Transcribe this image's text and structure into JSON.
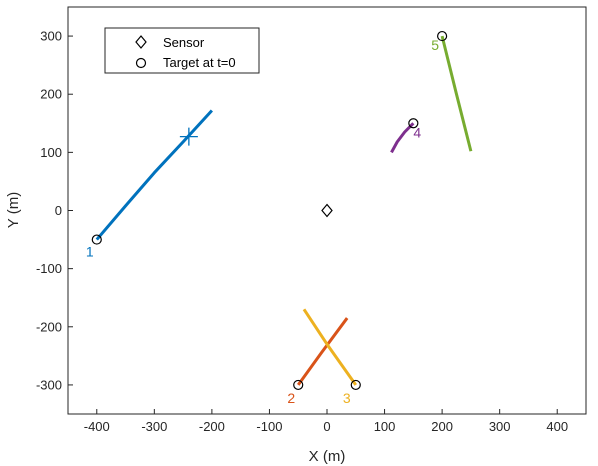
{
  "chart_data": {
    "type": "line",
    "xlabel": "X (m)",
    "ylabel": "Y (m)",
    "xlim": [
      -450,
      450
    ],
    "ylim": [
      -350,
      350
    ],
    "xticks": [
      -400,
      -300,
      -200,
      -100,
      0,
      100,
      200,
      300,
      400
    ],
    "yticks": [
      -300,
      -200,
      -100,
      0,
      100,
      200,
      300
    ],
    "grid": false,
    "legend": {
      "placement": "top-left",
      "entries": [
        {
          "marker": "diamond",
          "label": "Sensor"
        },
        {
          "marker": "circle",
          "label": "Target at t=0"
        }
      ]
    },
    "sensor": {
      "x": 0,
      "y": 0
    },
    "series": [
      {
        "label": "1",
        "color": "#0072BD",
        "start": [
          -400,
          -50
        ],
        "points": [
          [
            -400,
            -50
          ],
          [
            -350,
            8
          ],
          [
            -300,
            65
          ],
          [
            -250,
            118
          ],
          [
            -200,
            172
          ]
        ],
        "marker_plus": [
          -240,
          127
        ]
      },
      {
        "label": "2",
        "color": "#D95319",
        "start": [
          -50,
          -300
        ],
        "points": [
          [
            -50,
            -300
          ],
          [
            -10,
            -245
          ],
          [
            35,
            -185
          ]
        ]
      },
      {
        "label": "3",
        "color": "#EDB120",
        "start": [
          50,
          -300
        ],
        "points": [
          [
            50,
            -300
          ],
          [
            0,
            -230
          ],
          [
            -40,
            -170
          ]
        ]
      },
      {
        "label": "4",
        "color": "#7E2F8E",
        "start": [
          150,
          150
        ],
        "points": [
          [
            150,
            150
          ],
          [
            135,
            135
          ],
          [
            122,
            118
          ],
          [
            112,
            100
          ]
        ]
      },
      {
        "label": "5",
        "color": "#77AC30",
        "start": [
          200,
          300
        ],
        "points": [
          [
            200,
            300
          ],
          [
            225,
            200
          ],
          [
            250,
            102
          ]
        ]
      }
    ]
  }
}
